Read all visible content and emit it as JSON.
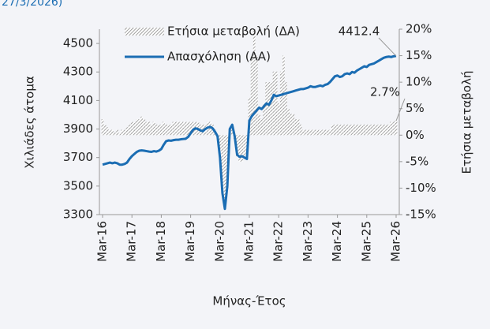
{
  "chart_data": {
    "type": "line-bar",
    "subtitle": "27/3/2026)",
    "x_label": "Μήνας-Έτος",
    "y_label": "Χιλιάδες άτομα",
    "y2_label": "Ετήσια μεταβολή",
    "categories": [
      "Mar-16",
      null,
      null,
      null,
      null,
      null,
      null,
      null,
      null,
      null,
      null,
      null,
      "Mar-17",
      null,
      null,
      null,
      null,
      null,
      null,
      null,
      null,
      null,
      null,
      null,
      "Mar-18",
      null,
      null,
      null,
      null,
      null,
      null,
      null,
      null,
      null,
      null,
      null,
      "Mar-19",
      null,
      null,
      null,
      null,
      null,
      null,
      null,
      null,
      null,
      null,
      null,
      "Mar-20",
      null,
      null,
      null,
      null,
      null,
      null,
      null,
      null,
      null,
      null,
      null,
      "Mar-21",
      null,
      null,
      null,
      null,
      null,
      null,
      null,
      null,
      null,
      null,
      null,
      "Mar-22",
      null,
      null,
      null,
      null,
      null,
      null,
      null,
      null,
      null,
      null,
      null,
      "Mar-23",
      null,
      null,
      null,
      null,
      null,
      null,
      null,
      null,
      null,
      null,
      null,
      "Mar-24",
      null,
      null,
      null,
      null,
      null,
      null,
      null,
      null,
      null,
      null,
      null,
      "Mar-25",
      null,
      null,
      null,
      null,
      null,
      null,
      null,
      null,
      null,
      null,
      null,
      "Mar-26"
    ],
    "series": [
      {
        "name": "Ετήσια μεταβολή (ΔΑ)",
        "kind": "bar",
        "axis": "y2",
        "color": "#9a9a9a",
        "values": [
          3,
          2,
          1.5,
          1,
          1,
          0.5,
          1,
          0.5,
          1,
          1,
          1.5,
          2,
          2.5,
          2.5,
          3,
          3,
          3.5,
          3,
          2.5,
          2.5,
          2,
          2.5,
          2,
          2,
          2,
          2.5,
          2,
          2,
          2,
          2.5,
          2.5,
          2.5,
          2.5,
          2.5,
          2.5,
          2.5,
          2.5,
          2.5,
          2.5,
          2.5,
          2,
          2,
          2,
          2.5,
          2.5,
          2,
          1,
          0,
          -3,
          -10,
          -13,
          -10,
          0,
          1,
          -1,
          -4,
          -5,
          -5,
          -4,
          -4,
          7,
          15,
          20,
          15,
          4,
          3,
          6,
          10,
          10,
          10,
          12,
          12,
          6,
          12,
          15,
          10,
          5,
          4,
          4,
          3,
          3,
          2,
          1,
          1,
          1,
          1,
          1,
          1,
          1,
          1,
          1,
          1,
          1,
          1,
          2,
          2,
          2,
          2,
          2,
          2,
          2,
          2,
          2,
          2,
          2,
          2,
          2,
          2,
          2,
          2,
          2,
          2,
          2,
          2,
          2,
          2,
          2,
          2,
          2.5,
          2.6,
          2.7
        ],
        "value_labels": [
          null,
          null,
          null,
          null,
          null,
          null,
          null,
          null,
          null,
          null,
          null,
          null,
          null,
          null,
          null,
          null,
          null,
          null,
          null,
          null,
          null,
          null,
          null,
          null,
          null,
          null,
          null,
          null,
          null,
          null,
          null,
          null,
          null,
          null,
          null,
          null,
          null,
          null,
          null,
          null,
          null,
          null,
          null,
          null,
          null,
          null,
          null,
          null,
          null,
          null,
          null,
          null,
          null,
          null,
          null,
          null,
          null,
          null,
          null,
          null,
          null,
          null,
          null,
          null,
          null,
          null,
          null,
          null,
          null,
          null,
          null,
          null,
          null,
          null,
          null,
          null,
          null,
          null,
          null,
          null,
          null,
          null,
          null,
          null,
          null,
          null,
          null,
          null,
          null,
          null,
          null,
          null,
          null,
          null,
          null,
          null,
          null,
          null,
          null,
          null,
          null,
          null,
          null,
          null,
          null,
          null,
          null,
          null,
          null,
          null,
          null,
          null,
          null,
          null,
          null,
          null,
          null,
          null,
          null,
          null,
          "2.7%"
        ]
      },
      {
        "name": "Απασχόληση (ΑΑ)",
        "kind": "line",
        "axis": "y",
        "color": "#1b6db3",
        "values": [
          3650,
          3655,
          3660,
          3665,
          3660,
          3665,
          3660,
          3650,
          3650,
          3655,
          3665,
          3690,
          3710,
          3725,
          3740,
          3748,
          3750,
          3748,
          3745,
          3742,
          3740,
          3745,
          3742,
          3748,
          3760,
          3790,
          3815,
          3820,
          3818,
          3822,
          3825,
          3825,
          3828,
          3830,
          3832,
          3845,
          3870,
          3895,
          3905,
          3900,
          3890,
          3885,
          3900,
          3910,
          3915,
          3905,
          3880,
          3850,
          3700,
          3450,
          3340,
          3500,
          3900,
          3930,
          3850,
          3720,
          3705,
          3710,
          3700,
          3690,
          3960,
          3990,
          4010,
          4030,
          4050,
          4040,
          4060,
          4080,
          4070,
          4100,
          4140,
          4130,
          4135,
          4140,
          4145,
          4150,
          4155,
          4160,
          4165,
          4170,
          4175,
          4180,
          4180,
          4185,
          4190,
          4200,
          4195,
          4195,
          4200,
          4205,
          4200,
          4210,
          4215,
          4230,
          4250,
          4270,
          4275,
          4265,
          4270,
          4285,
          4290,
          4285,
          4300,
          4295,
          4310,
          4320,
          4330,
          4340,
          4335,
          4350,
          4355,
          4360,
          4370,
          4380,
          4390,
          4400,
          4405,
          4408,
          4405,
          4410,
          4412.4
        ],
        "value_labels": [
          null,
          null,
          null,
          null,
          null,
          null,
          null,
          null,
          null,
          null,
          null,
          null,
          null,
          null,
          null,
          null,
          null,
          null,
          null,
          null,
          null,
          null,
          null,
          null,
          null,
          null,
          null,
          null,
          null,
          null,
          null,
          null,
          null,
          null,
          null,
          null,
          null,
          null,
          null,
          null,
          null,
          null,
          null,
          null,
          null,
          null,
          null,
          null,
          null,
          null,
          null,
          null,
          null,
          null,
          null,
          null,
          null,
          null,
          null,
          null,
          null,
          null,
          null,
          null,
          null,
          null,
          null,
          null,
          null,
          null,
          null,
          null,
          null,
          null,
          null,
          null,
          null,
          null,
          null,
          null,
          null,
          null,
          null,
          null,
          null,
          null,
          null,
          null,
          null,
          null,
          null,
          null,
          null,
          null,
          null,
          null,
          null,
          null,
          null,
          null,
          null,
          null,
          null,
          null,
          null,
          null,
          null,
          null,
          null,
          null,
          null,
          null,
          null,
          null,
          null,
          null,
          null,
          null,
          null,
          null,
          "4412.4"
        ]
      }
    ],
    "ylim": [
      3300,
      4600
    ],
    "yticks": [
      3300,
      3500,
      3700,
      3900,
      4100,
      4300,
      4500
    ],
    "y2lim": [
      -15,
      20
    ],
    "y2ticks": [
      {
        "value": -15,
        "label": "-15%"
      },
      {
        "value": -10,
        "label": "-10%"
      },
      {
        "value": -5,
        "label": "-5%"
      },
      {
        "value": 0,
        "label": "0%"
      },
      {
        "value": 5,
        "label": "5%"
      },
      {
        "value": 10,
        "label": "10%"
      },
      {
        "value": 15,
        "label": "15%"
      },
      {
        "value": 20,
        "label": "20%"
      }
    ],
    "grid": false,
    "legend": "top"
  }
}
